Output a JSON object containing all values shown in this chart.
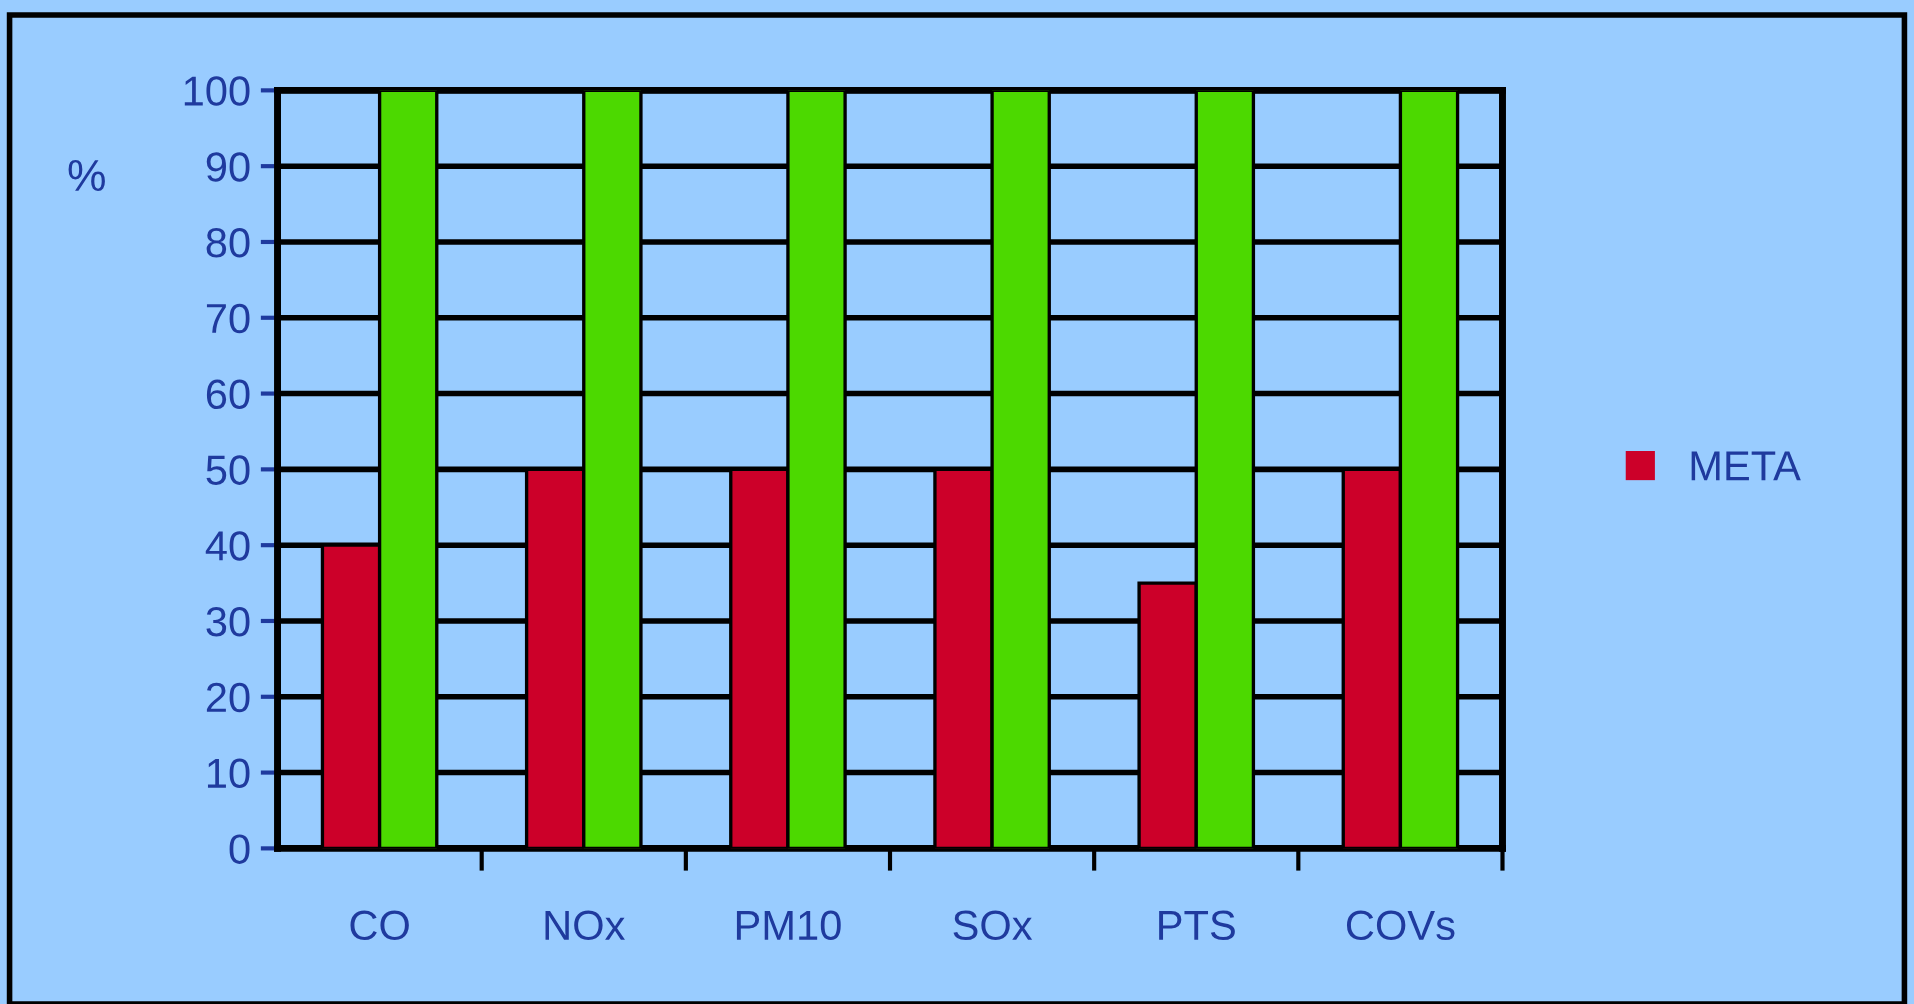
{
  "chart_data": {
    "type": "bar",
    "ylabel": "%",
    "categories": [
      "CO",
      "NOx",
      "PM10",
      "SOx",
      "PTS",
      "COVs"
    ],
    "series": [
      {
        "name": "META",
        "color": "#cc0029",
        "values": [
          40,
          50,
          50,
          50,
          35,
          50
        ]
      },
      {
        "color": "#4cd900",
        "values": [
          100,
          100,
          100,
          100,
          100,
          100
        ]
      }
    ],
    "ylim": [
      0,
      100
    ],
    "yticks": [
      0,
      10,
      20,
      30,
      40,
      50,
      60,
      70,
      80,
      90,
      100
    ],
    "grid": "y",
    "legend": "right"
  }
}
